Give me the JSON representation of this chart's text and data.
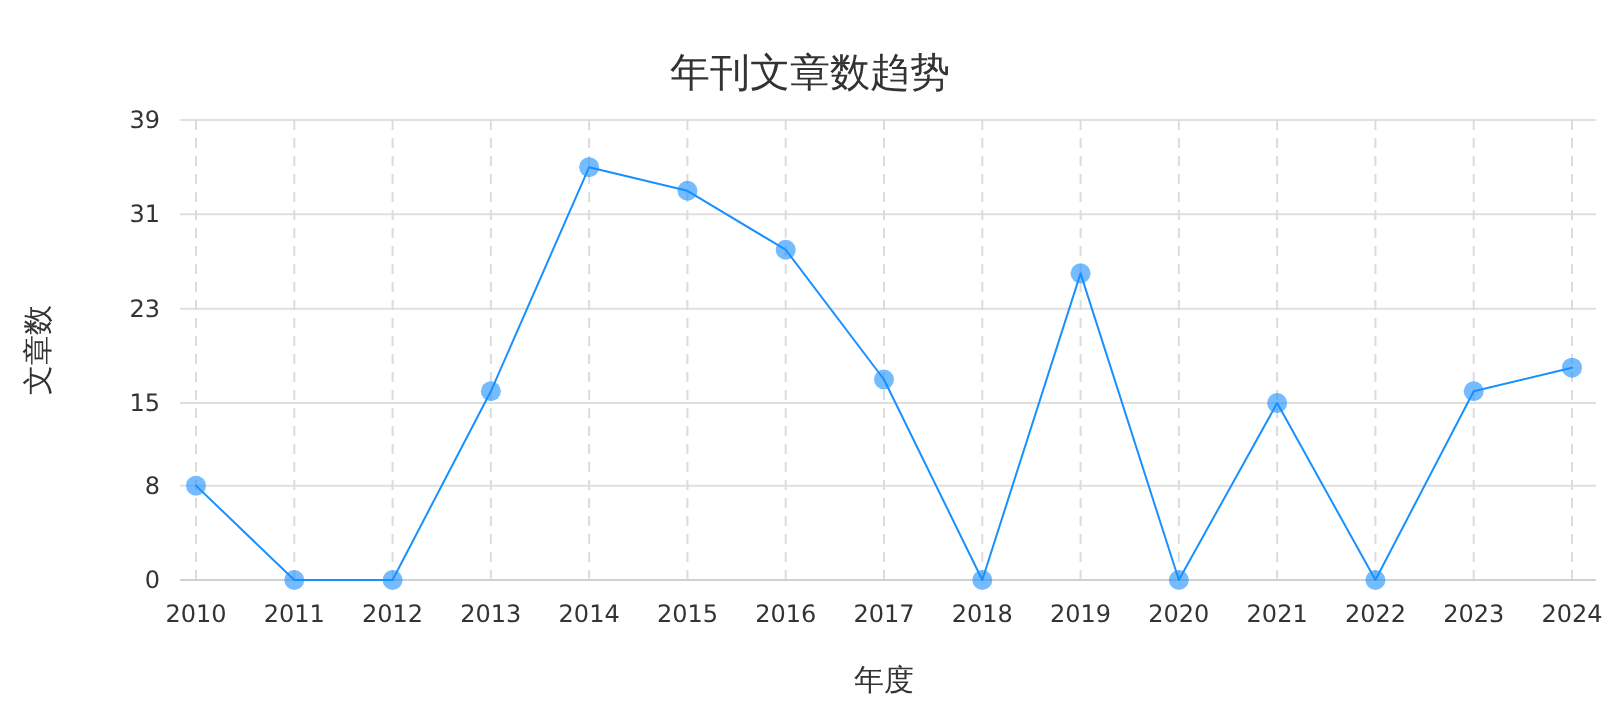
{
  "chart_data": {
    "type": "line",
    "title": "年刊文章数趋势",
    "xlabel": "年度",
    "ylabel": "文章数",
    "categories": [
      "2010",
      "2011",
      "2012",
      "2013",
      "2014",
      "2015",
      "2016",
      "2017",
      "2018",
      "2019",
      "2020",
      "2021",
      "2022",
      "2023",
      "2024"
    ],
    "series": [
      {
        "color": "#1890ff",
        "values": [
          8,
          0,
          0,
          16,
          35,
          33,
          28,
          17,
          0,
          26,
          0,
          15,
          0,
          16,
          18
        ]
      }
    ],
    "ylim": [
      0,
      39
    ],
    "yticks": [
      0,
      8,
      15,
      23,
      31,
      39
    ],
    "grid": true,
    "marker": "circle",
    "line_style": "solid"
  }
}
